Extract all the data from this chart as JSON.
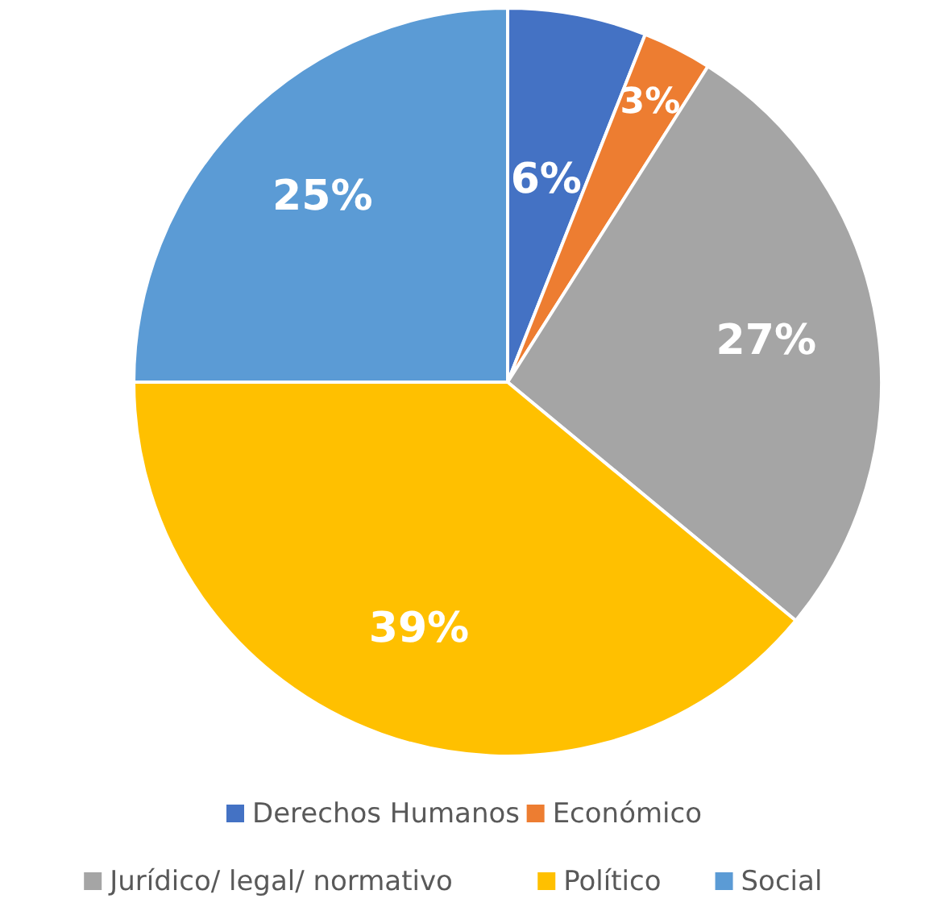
{
  "chart_data": {
    "type": "pie",
    "categories": [
      "Derechos Humanos",
      "Económico",
      "Jurídico/ legal/ normativo",
      "Político",
      "Social"
    ],
    "values": [
      6,
      3,
      27,
      39,
      25
    ],
    "colors": [
      "#4472c4",
      "#ed7d31",
      "#a5a5a5",
      "#ffc000",
      "#5b9bd5"
    ],
    "value_labels": [
      "6%",
      "3%",
      "27%",
      "39%",
      "25%"
    ],
    "legend": "bottom"
  }
}
